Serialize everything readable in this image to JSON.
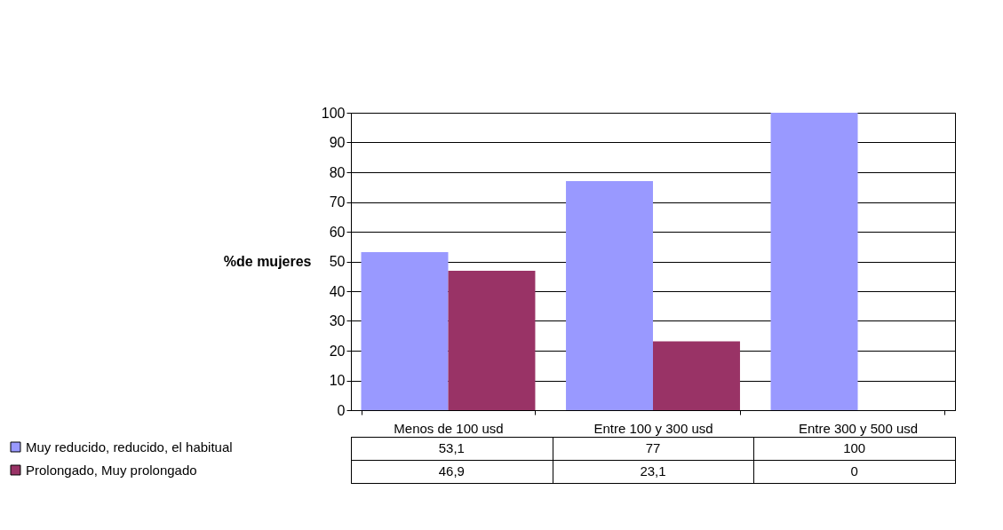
{
  "chart_data": {
    "type": "bar",
    "ylabel": "%de mujeres",
    "categories": [
      "Menos de 100 usd",
      "Entre 100 y 300 usd",
      "Entre 300 y 500 usd"
    ],
    "series": [
      {
        "name": "Muy reducido, reducido, el habitual",
        "color": "#9999ff",
        "values": [
          53.1,
          77,
          100
        ],
        "value_labels": [
          "53,1",
          "77",
          "100"
        ]
      },
      {
        "name": "Prolongado, Muy prolongado",
        "color": "#993366",
        "values": [
          46.9,
          23.1,
          0
        ],
        "value_labels": [
          "46,9",
          "23,1",
          "0"
        ]
      }
    ],
    "ylim": [
      0,
      100
    ],
    "yticks": [
      0,
      10,
      20,
      30,
      40,
      50,
      60,
      70,
      80,
      90,
      100
    ],
    "grid": "y",
    "legend": "bottom left"
  }
}
